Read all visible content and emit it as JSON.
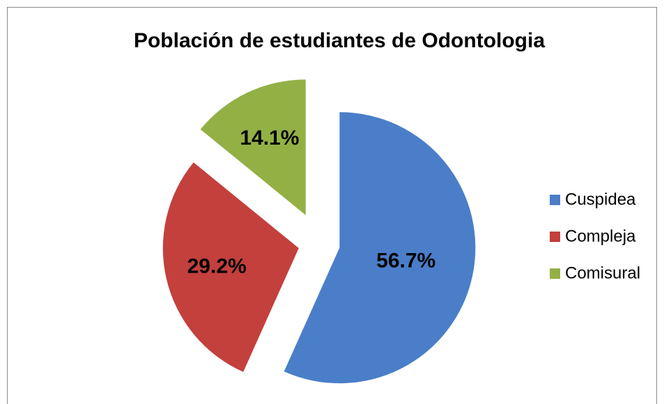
{
  "chart_data": {
    "type": "pie",
    "title": "Población de estudiantes de Odontologia",
    "categories": [
      "Cuspidea",
      "Compleja",
      "Comisural"
    ],
    "values": [
      56.7,
      29.2,
      14.1
    ],
    "value_labels": [
      "56.7%",
      "29.2%",
      "14.1%"
    ],
    "colors": [
      "#4a7ec8",
      "#c3403c",
      "#93b045"
    ],
    "legend": "right"
  }
}
